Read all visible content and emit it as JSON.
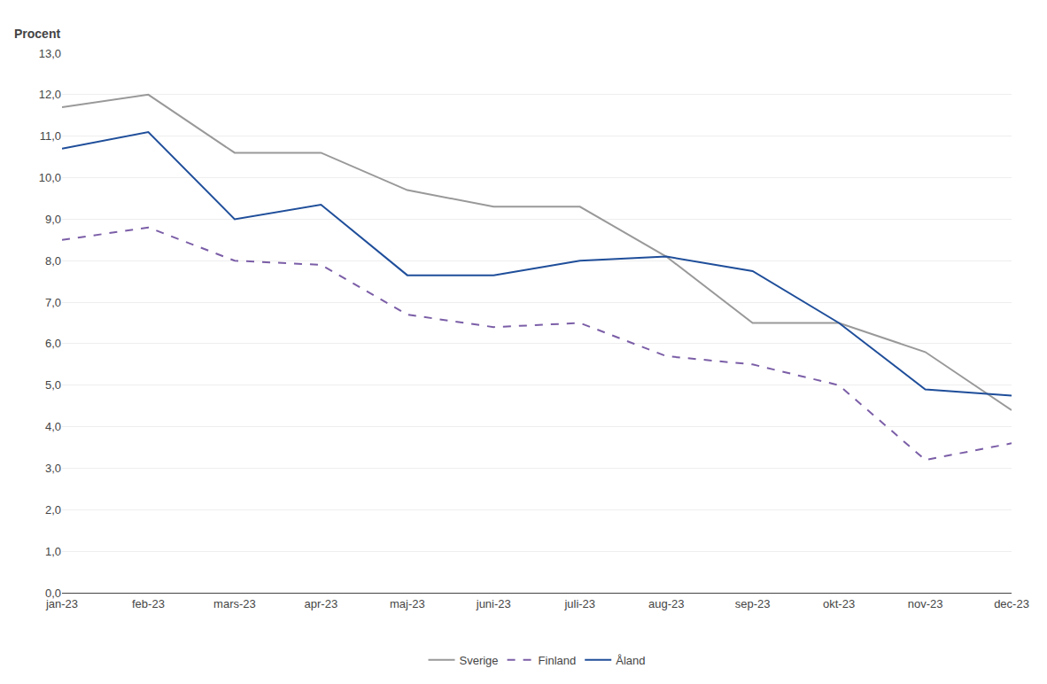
{
  "chart_data": {
    "type": "line",
    "ylabel": "Procent",
    "categories": [
      "jan-23",
      "feb-23",
      "mars-23",
      "apr-23",
      "maj-23",
      "juni-23",
      "juli-23",
      "aug-23",
      "sep-23",
      "okt-23",
      "nov-23",
      "dec-23"
    ],
    "series": [
      {
        "name": "Sverige",
        "color": "#999999",
        "line_style": "solid",
        "values": [
          11.7,
          12.0,
          10.6,
          10.6,
          9.7,
          9.3,
          9.3,
          8.1,
          6.5,
          6.5,
          5.8,
          4.4
        ]
      },
      {
        "name": "Finland",
        "color": "#7B5EA7",
        "line_style": "dashed",
        "values": [
          8.5,
          8.8,
          8.0,
          7.9,
          6.7,
          6.4,
          6.5,
          5.7,
          5.5,
          5.0,
          3.2,
          3.6
        ]
      },
      {
        "name": "Åland",
        "color": "#1F4E9A",
        "line_style": "solid",
        "values": [
          10.7,
          11.1,
          9.0,
          9.35,
          7.65,
          7.65,
          8.0,
          8.1,
          7.75,
          6.5,
          4.9,
          4.75
        ]
      }
    ],
    "ylim": [
      0.0,
      13.0
    ],
    "yticks": [
      {
        "value": 0.0,
        "label": "0,0"
      },
      {
        "value": 1.0,
        "label": "1,0"
      },
      {
        "value": 2.0,
        "label": "2,0"
      },
      {
        "value": 3.0,
        "label": "3,0"
      },
      {
        "value": 4.0,
        "label": "4,0"
      },
      {
        "value": 5.0,
        "label": "5,0"
      },
      {
        "value": 6.0,
        "label": "6,0"
      },
      {
        "value": 7.0,
        "label": "7,0"
      },
      {
        "value": 8.0,
        "label": "8,0"
      },
      {
        "value": 9.0,
        "label": "9,0"
      },
      {
        "value": 10.0,
        "label": "10,0"
      },
      {
        "value": 11.0,
        "label": "11,0"
      },
      {
        "value": 12.0,
        "label": "12,0"
      },
      {
        "value": 13.0,
        "label": "13,0"
      }
    ],
    "grid": true,
    "legend": "bottom"
  }
}
